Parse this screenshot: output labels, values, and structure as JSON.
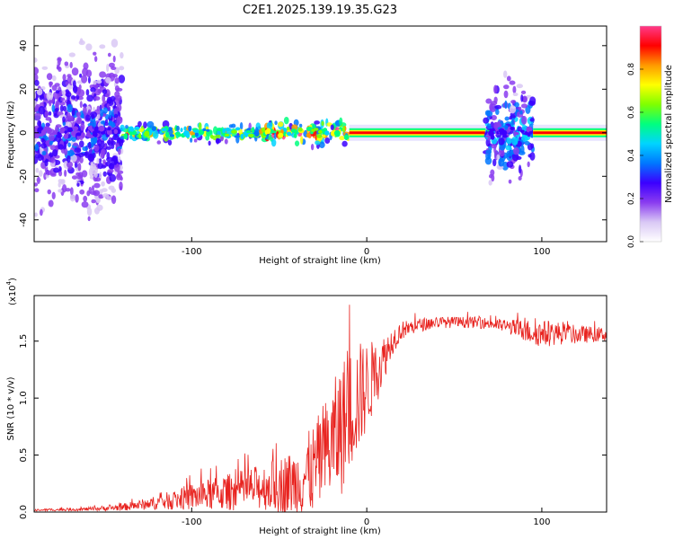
{
  "title": "C2E1.2025.139.19.35.G23",
  "colors": {
    "snr_line": "#e8231f",
    "spectro_background_halo": "#e8e4ff",
    "axis": "#000000"
  },
  "colorbar": {
    "label": "Normalized spectral amplitude",
    "ticks": [
      "0.0",
      "0.2",
      "0.4",
      "0.6",
      "0.8"
    ],
    "range": [
      0,
      1
    ],
    "colormap": [
      "#ffffff",
      "#d9c8f5",
      "#8a3cf0",
      "#3b00ff",
      "#0077ff",
      "#00d4ff",
      "#00ff7f",
      "#7fff00",
      "#ffff00",
      "#ff9900",
      "#ff0000",
      "#ff3a8a"
    ]
  },
  "chart_data": [
    {
      "type": "heatmap",
      "xlabel": "Height of straight line (km)",
      "ylabel": "Frequency (Hz)",
      "xlim": [
        -190,
        137
      ],
      "ylim": [
        -50,
        49
      ],
      "xticks": [
        -100,
        0,
        100
      ],
      "xtick_labels": [
        "-100",
        "0",
        "100"
      ],
      "yticks": [
        -40,
        -20,
        0,
        20,
        40
      ],
      "ytick_labels": [
        "-40",
        "-20",
        "0",
        "20",
        "40"
      ],
      "ridge_frequency_hz": 0,
      "segments": [
        {
          "x_from": -190,
          "x_to": -140,
          "amplitude": 0.15,
          "spread_hz": 49
        },
        {
          "x_from": -140,
          "x_to": -60,
          "amplitude": 0.35,
          "spread_hz": 6
        },
        {
          "x_from": -60,
          "x_to": -10,
          "amplitude": 0.45,
          "spread_hz": 8
        },
        {
          "x_from": -10,
          "x_to": 68,
          "amplitude": 0.95,
          "spread_hz": 2
        },
        {
          "x_from": 68,
          "x_to": 95,
          "amplitude": 0.2,
          "spread_hz": 30
        },
        {
          "x_from": 95,
          "x_to": 137,
          "amplitude": 0.95,
          "spread_hz": 2
        }
      ]
    },
    {
      "type": "line",
      "xlabel": "Height of straight line (km)",
      "ylabel": "SNR (10 * v/v)",
      "y_multiplier_label": "(x10",
      "y_multiplier_exp": "4",
      "xlim": [
        -190,
        137
      ],
      "ylim": [
        0,
        1.9
      ],
      "xticks": [
        -100,
        0,
        100
      ],
      "xtick_labels": [
        "-100",
        "0",
        "100"
      ],
      "yticks": [
        0,
        0.5,
        1.0,
        1.5
      ],
      "ytick_labels": [
        "0.0",
        "0.5",
        "1.0",
        "1.5"
      ],
      "series": [
        {
          "x": [
            -190,
            -160,
            -140,
            -120,
            -100,
            -80,
            -60,
            -40,
            -30,
            -20,
            -15,
            -10,
            -5,
            0,
            5,
            10,
            15,
            20,
            30,
            40,
            50,
            60,
            70,
            80,
            90,
            100,
            110,
            120,
            137
          ],
          "y": [
            0.02,
            0.03,
            0.05,
            0.1,
            0.17,
            0.22,
            0.28,
            0.35,
            0.5,
            0.75,
            0.9,
            1.05,
            1.15,
            1.22,
            1.3,
            1.42,
            1.55,
            1.62,
            1.66,
            1.68,
            1.68,
            1.68,
            1.67,
            1.65,
            1.62,
            1.6,
            1.6,
            1.58,
            1.58
          ],
          "noise_amplitude": [
            0.01,
            0.015,
            0.03,
            0.06,
            0.12,
            0.16,
            0.2,
            0.3,
            0.4,
            0.5,
            0.6,
            0.55,
            0.5,
            0.4,
            0.3,
            0.2,
            0.12,
            0.08,
            0.06,
            0.05,
            0.05,
            0.05,
            0.05,
            0.06,
            0.1,
            0.12,
            0.1,
            0.08,
            0.06
          ]
        }
      ]
    }
  ]
}
